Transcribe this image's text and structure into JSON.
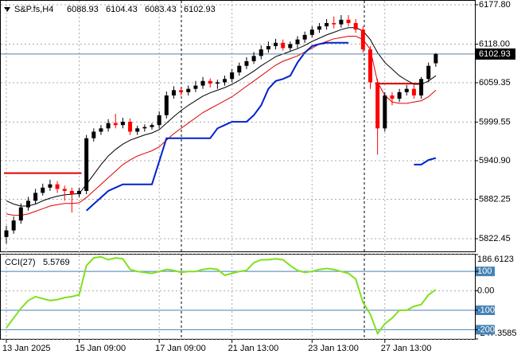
{
  "chart_data": [
    {
      "type": "candlestick",
      "title": "S&P.fs,H4",
      "categories": [
        "13 Jan 2025",
        null,
        null,
        null,
        null,
        null,
        null,
        null,
        null,
        null,
        "15 Jan 09:00",
        null,
        null,
        null,
        null,
        null,
        null,
        null,
        null,
        null,
        null,
        "17 Jan 09:00",
        null,
        null,
        null,
        null,
        null,
        null,
        null,
        null,
        null,
        "21 Jan 13:00",
        null,
        null,
        null,
        null,
        null,
        null,
        null,
        null,
        null,
        null,
        "23 Jan 13:00",
        null,
        null,
        null,
        null,
        null,
        null,
        null,
        null,
        null,
        "27 Jan 13:00",
        null,
        null,
        null,
        null,
        null,
        null,
        null
      ],
      "open": [
        5825,
        5835,
        5850,
        5870,
        5880,
        5892,
        5900,
        5905,
        5898,
        5895,
        5890,
        5895,
        5975,
        5985,
        5990,
        5998,
        5995,
        6000,
        5985,
        5990,
        5992,
        5995,
        6010,
        6040,
        6048,
        6045,
        6050,
        6055,
        6062,
        6058,
        6060,
        6065,
        6075,
        6085,
        6092,
        6100,
        6110,
        6115,
        6120,
        6112,
        6118,
        6125,
        6132,
        6140,
        6145,
        6150,
        6148,
        6155,
        6150,
        6140,
        6110,
        6060,
        5990,
        6040,
        6035,
        6045,
        6050,
        6040,
        6065,
        6088.93
      ],
      "high": [
        5842,
        5856,
        5876,
        5886,
        5898,
        5906,
        5912,
        5910,
        5903,
        5900,
        5900,
        5980,
        5990,
        5995,
        6004,
        6012,
        6006,
        6005,
        5994,
        5996,
        5998,
        6016,
        6046,
        6054,
        6052,
        6055,
        6062,
        6068,
        6066,
        6064,
        6070,
        6080,
        6090,
        6098,
        6106,
        6116,
        6122,
        6126,
        6125,
        6122,
        6130,
        6137,
        6145,
        6150,
        6156,
        6160,
        6162,
        6162,
        6156,
        6145,
        6115,
        6065,
        6045,
        6045,
        6050,
        6056,
        6056,
        6068,
        6090,
        6104.43
      ],
      "low": [
        5815,
        5830,
        5845,
        5865,
        5875,
        5888,
        5895,
        5892,
        5880,
        5862,
        5885,
        5890,
        5970,
        5980,
        5985,
        5990,
        5990,
        5980,
        5980,
        5985,
        5988,
        5990,
        6005,
        6035,
        6040,
        6040,
        6045,
        6050,
        6052,
        6050,
        6055,
        6060,
        6070,
        6080,
        6088,
        6095,
        6105,
        6110,
        6108,
        6108,
        6112,
        6120,
        6128,
        6135,
        6140,
        6142,
        6143,
        6145,
        6135,
        6105,
        6050,
        5950,
        5985,
        6025,
        6030,
        6040,
        6035,
        6035,
        6060,
        6083.43
      ],
      "close": [
        5835,
        5850,
        5870,
        5880,
        5892,
        5900,
        5905,
        5898,
        5895,
        5890,
        5895,
        5975,
        5985,
        5990,
        5998,
        5995,
        6000,
        5985,
        5990,
        5992,
        5995,
        6010,
        6040,
        6048,
        6045,
        6050,
        6055,
        6062,
        6058,
        6060,
        6065,
        6075,
        6085,
        6092,
        6100,
        6110,
        6115,
        6120,
        6112,
        6118,
        6125,
        6132,
        6140,
        6145,
        6150,
        6148,
        6155,
        6150,
        6140,
        6110,
        6060,
        5990,
        6040,
        6035,
        6045,
        6050,
        6040,
        6065,
        6085,
        6102.93
      ],
      "bull_color": "#000000",
      "bear_color": "#ff0000",
      "series": [
        {
          "color": "#000000",
          "values": [
            5880,
            5875,
            5872,
            5872,
            5875,
            5880,
            5884,
            5887,
            5889,
            5890,
            5891,
            5905,
            5920,
            5935,
            5948,
            5958,
            5966,
            5972,
            5976,
            5980,
            5983,
            5988,
            5998,
            6008,
            6017,
            6025,
            6032,
            6039,
            6044,
            6048,
            6052,
            6057,
            6063,
            6070,
            6077,
            6085,
            6092,
            6099,
            6103,
            6107,
            6111,
            6116,
            6122,
            6127,
            6132,
            6136,
            6140,
            6143,
            6143,
            6138,
            6125,
            6105,
            6090,
            6080,
            6070,
            6063,
            6057,
            6057,
            6062,
            6070
          ]
        },
        {
          "color": "#e00000",
          "values": [
            5860,
            5858,
            5858,
            5860,
            5864,
            5868,
            5872,
            5874,
            5876,
            5876,
            5877,
            5885,
            5895,
            5905,
            5915,
            5925,
            5935,
            5942,
            5948,
            5952,
            5956,
            5962,
            5972,
            5982,
            5990,
            5998,
            6006,
            6014,
            6020,
            6026,
            6032,
            6038,
            6046,
            6054,
            6062,
            6070,
            6078,
            6086,
            6092,
            6096,
            6100,
            6106,
            6112,
            6118,
            6122,
            6126,
            6128,
            6130,
            6130,
            6125,
            6110,
            6060,
            6040,
            6030,
            6028,
            6028,
            6030,
            6032,
            6038,
            6048
          ]
        },
        {
          "color": "#0022cc",
          "values": [
            null,
            null,
            null,
            null,
            null,
            null,
            null,
            null,
            null,
            null,
            null,
            5865,
            5875,
            5885,
            5895,
            5900,
            5905,
            5905,
            5905,
            5905,
            5905,
            5940,
            5975,
            5975,
            5975,
            5975,
            5975,
            5975,
            5975,
            5990,
            5995,
            6000,
            6000,
            6000,
            6010,
            6025,
            6050,
            6062,
            6065,
            6070,
            6090,
            6105,
            6115,
            6118,
            6120,
            6120,
            6120,
            6120,
            null,
            null,
            null,
            null,
            null,
            null,
            null,
            null,
            5935,
            5935,
            5942,
            5945
          ]
        }
      ],
      "levels": [
        {
          "value": 5922,
          "from": 0,
          "to": 10,
          "color": "#e00000"
        },
        {
          "value": 6058,
          "from": 51,
          "to": 57,
          "color": "#e00000"
        }
      ],
      "ylim": [
        5803.1,
        6183.8
      ],
      "yticks": [
        {
          "value": 5822.45,
          "label": "5822.45"
        },
        {
          "value": 5882.25,
          "label": "5882.25"
        },
        {
          "value": 5940.9,
          "label": "5940.90"
        },
        {
          "value": 5999.55,
          "label": "5999.55"
        },
        {
          "value": 6059.35,
          "label": "6059.35"
        },
        {
          "value": 6118,
          "label": "6118.00"
        },
        {
          "value": 6177.8,
          "label": "6177.80"
        }
      ],
      "grid": true
    },
    {
      "type": "line",
      "title": "CCI(27)",
      "color": "#80e020",
      "values": [
        -190,
        -140,
        -90,
        -50,
        -30,
        -40,
        -50,
        -45,
        -35,
        -30,
        -20,
        130,
        170,
        175,
        160,
        170,
        165,
        110,
        100,
        95,
        90,
        100,
        110,
        105,
        95,
        100,
        100,
        110,
        115,
        110,
        80,
        90,
        100,
        105,
        145,
        160,
        160,
        165,
        160,
        130,
        105,
        95,
        100,
        110,
        115,
        110,
        100,
        90,
        60,
        -60,
        -120,
        -220,
        -170,
        -140,
        -100,
        -100,
        -80,
        -70,
        -20,
        5.5769
      ],
      "ylim": [
        -247.3585,
        186.6123
      ],
      "yticks": [
        {
          "value": -247.3585,
          "label": "-247.3585"
        },
        {
          "value": -200,
          "label": "-200"
        },
        {
          "value": -100,
          "label": "-100"
        },
        {
          "value": 0,
          "label": "0.00"
        },
        {
          "value": 100,
          "label": "100"
        },
        {
          "value": 186.6123,
          "label": "186.6123"
        }
      ],
      "levels": [
        100,
        -100,
        -200
      ],
      "level_color": "#4682b4"
    }
  ]
}
